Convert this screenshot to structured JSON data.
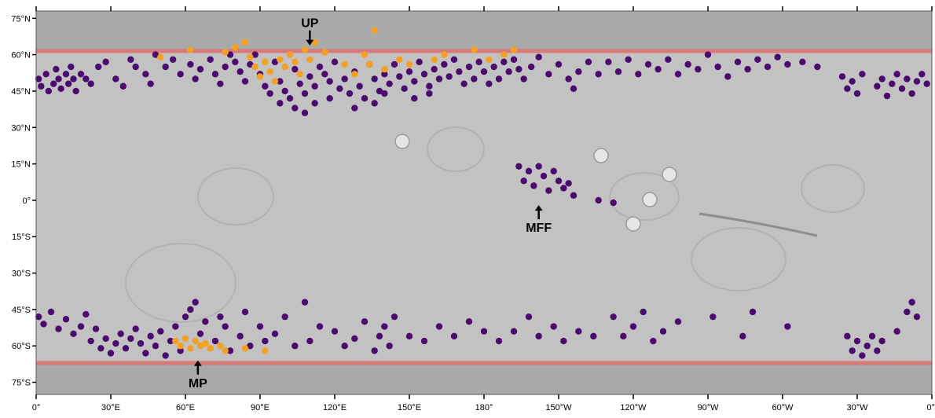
{
  "map": {
    "projection": "equirectangular",
    "lon_range_east": [
      0,
      360
    ],
    "lat_range": [
      -80,
      78
    ],
    "lat_ticks": [
      {
        "lat": 75,
        "label": "75°N"
      },
      {
        "lat": 60,
        "label": "60°N"
      },
      {
        "lat": 45,
        "label": "45°N"
      },
      {
        "lat": 30,
        "label": "30°N"
      },
      {
        "lat": 15,
        "label": "15°N"
      },
      {
        "lat": 0,
        "label": "0°"
      },
      {
        "lat": -15,
        "label": "15°S"
      },
      {
        "lat": -30,
        "label": "30°S"
      },
      {
        "lat": -45,
        "label": "45°S"
      },
      {
        "lat": -60,
        "label": "60°S"
      },
      {
        "lat": -75,
        "label": "75°S"
      }
    ],
    "lon_ticks": [
      {
        "lon": 0,
        "label": "0°"
      },
      {
        "lon": 30,
        "label": "30°E"
      },
      {
        "lon": 60,
        "label": "60°E"
      },
      {
        "lon": 90,
        "label": "90°E"
      },
      {
        "lon": 120,
        "label": "120°E"
      },
      {
        "lon": 150,
        "label": "150°E"
      },
      {
        "lon": 180,
        "label": "180°"
      },
      {
        "lon": 210,
        "label": "150°W"
      },
      {
        "lon": 240,
        "label": "120°W"
      },
      {
        "lon": 270,
        "label": "90°W"
      },
      {
        "lon": 300,
        "label": "60°W"
      },
      {
        "lon": 330,
        "label": "30°W"
      },
      {
        "lon": 360,
        "label": "0°"
      }
    ],
    "colors": {
      "background": "#c2c2c2",
      "polar_band": "#a9a9a9",
      "lat_line": "#e07070",
      "purple_points": "#4b0a6e",
      "orange_points": "#f5a020"
    },
    "lat_lines": [
      61.5,
      -67
    ],
    "annotations": [
      {
        "label": "UP",
        "lon": 110,
        "lat": 70,
        "arrow": "down"
      },
      {
        "label": "MFF",
        "lon": 202,
        "lat": -2,
        "arrow": "up"
      },
      {
        "label": "MP",
        "lon": 65,
        "lat": -66,
        "arrow": "up"
      }
    ]
  },
  "chart_data": {
    "type": "scatter",
    "x_units": "longitude (°E, 0–360)",
    "y_units": "latitude (°)",
    "series": [
      {
        "color": "#4b0a6e",
        "points": [
          [
            1,
            50
          ],
          [
            2,
            47
          ],
          [
            4,
            52
          ],
          [
            5,
            45
          ],
          [
            7,
            48
          ],
          [
            8,
            54
          ],
          [
            9,
            50
          ],
          [
            10,
            46
          ],
          [
            12,
            52
          ],
          [
            13,
            48
          ],
          [
            14,
            55
          ],
          [
            15,
            50
          ],
          [
            16,
            45
          ],
          [
            18,
            52
          ],
          [
            20,
            50
          ],
          [
            22,
            48
          ],
          [
            25,
            55
          ],
          [
            28,
            57
          ],
          [
            32,
            50
          ],
          [
            35,
            47
          ],
          [
            38,
            58
          ],
          [
            40,
            55
          ],
          [
            44,
            52
          ],
          [
            46,
            48
          ],
          [
            48,
            60
          ],
          [
            52,
            55
          ],
          [
            55,
            58
          ],
          [
            58,
            52
          ],
          [
            62,
            56
          ],
          [
            64,
            50
          ],
          [
            66,
            54
          ],
          [
            70,
            58
          ],
          [
            72,
            52
          ],
          [
            74,
            48
          ],
          [
            76,
            55
          ],
          [
            78,
            60
          ],
          [
            80,
            57
          ],
          [
            82,
            53
          ],
          [
            84,
            49
          ],
          [
            86,
            56
          ],
          [
            88,
            60
          ],
          [
            90,
            52
          ],
          [
            92,
            47
          ],
          [
            94,
            44
          ],
          [
            96,
            57
          ],
          [
            98,
            49
          ],
          [
            100,
            45
          ],
          [
            102,
            42
          ],
          [
            104,
            54
          ],
          [
            106,
            48
          ],
          [
            108,
            44
          ],
          [
            110,
            51
          ],
          [
            112,
            47
          ],
          [
            114,
            55
          ],
          [
            116,
            52
          ],
          [
            118,
            49
          ],
          [
            120,
            57
          ],
          [
            122,
            46
          ],
          [
            124,
            50
          ],
          [
            126,
            44
          ],
          [
            128,
            53
          ],
          [
            130,
            47
          ],
          [
            132,
            42
          ],
          [
            134,
            56
          ],
          [
            136,
            50
          ],
          [
            138,
            45
          ],
          [
            140,
            52
          ],
          [
            142,
            48
          ],
          [
            144,
            56
          ],
          [
            146,
            51
          ],
          [
            148,
            46
          ],
          [
            150,
            53
          ],
          [
            152,
            49
          ],
          [
            154,
            57
          ],
          [
            156,
            52
          ],
          [
            158,
            47
          ],
          [
            160,
            54
          ],
          [
            162,
            50
          ],
          [
            164,
            56
          ],
          [
            166,
            51
          ],
          [
            168,
            58
          ],
          [
            170,
            53
          ],
          [
            172,
            48
          ],
          [
            174,
            55
          ],
          [
            176,
            50
          ],
          [
            178,
            57
          ],
          [
            180,
            53
          ],
          [
            182,
            48
          ],
          [
            184,
            55
          ],
          [
            186,
            50
          ],
          [
            188,
            57
          ],
          [
            190,
            53
          ],
          [
            192,
            58
          ],
          [
            194,
            54
          ],
          [
            196,
            50
          ],
          [
            199,
            55
          ],
          [
            202,
            59
          ],
          [
            206,
            52
          ],
          [
            210,
            56
          ],
          [
            214,
            50
          ],
          [
            216,
            46
          ],
          [
            218,
            53
          ],
          [
            222,
            57
          ],
          [
            226,
            52
          ],
          [
            230,
            57
          ],
          [
            234,
            53
          ],
          [
            238,
            58
          ],
          [
            242,
            52
          ],
          [
            246,
            56
          ],
          [
            250,
            54
          ],
          [
            254,
            58
          ],
          [
            258,
            52
          ],
          [
            262,
            56
          ],
          [
            266,
            54
          ],
          [
            270,
            60
          ],
          [
            274,
            55
          ],
          [
            278,
            51
          ],
          [
            282,
            57
          ],
          [
            286,
            54
          ],
          [
            290,
            58
          ],
          [
            294,
            55
          ],
          [
            298,
            59
          ],
          [
            302,
            56
          ],
          [
            308,
            57
          ],
          [
            314,
            55
          ],
          [
            324,
            51
          ],
          [
            326,
            46
          ],
          [
            328,
            49
          ],
          [
            330,
            44
          ],
          [
            332,
            52
          ],
          [
            338,
            47
          ],
          [
            340,
            50
          ],
          [
            342,
            43
          ],
          [
            344,
            48
          ],
          [
            346,
            52
          ],
          [
            348,
            46
          ],
          [
            350,
            50
          ],
          [
            352,
            44
          ],
          [
            354,
            49
          ],
          [
            356,
            52
          ],
          [
            358,
            48
          ],
          [
            98,
            40
          ],
          [
            104,
            38
          ],
          [
            108,
            36
          ],
          [
            112,
            40
          ],
          [
            118,
            42
          ],
          [
            128,
            38
          ],
          [
            136,
            40
          ],
          [
            140,
            44
          ],
          [
            152,
            42
          ],
          [
            158,
            44
          ],
          [
            194,
            14
          ],
          [
            196,
            8
          ],
          [
            198,
            12
          ],
          [
            200,
            6
          ],
          [
            202,
            14
          ],
          [
            204,
            10
          ],
          [
            206,
            4
          ],
          [
            208,
            12
          ],
          [
            210,
            8
          ],
          [
            212,
            5
          ],
          [
            214,
            7
          ],
          [
            216,
            2
          ],
          [
            226,
            0
          ],
          [
            232,
            -1
          ],
          [
            1,
            -48
          ],
          [
            3,
            -51
          ],
          [
            6,
            -46
          ],
          [
            9,
            -53
          ],
          [
            12,
            -49
          ],
          [
            15,
            -55
          ],
          [
            18,
            -52
          ],
          [
            20,
            -47
          ],
          [
            22,
            -58
          ],
          [
            24,
            -53
          ],
          [
            26,
            -61
          ],
          [
            28,
            -57
          ],
          [
            30,
            -63
          ],
          [
            32,
            -59
          ],
          [
            34,
            -55
          ],
          [
            36,
            -61
          ],
          [
            38,
            -57
          ],
          [
            40,
            -53
          ],
          [
            42,
            -59
          ],
          [
            44,
            -63
          ],
          [
            46,
            -56
          ],
          [
            48,
            -60
          ],
          [
            50,
            -54
          ],
          [
            52,
            -64
          ],
          [
            54,
            -58
          ],
          [
            56,
            -52
          ],
          [
            58,
            -62
          ],
          [
            60,
            -48
          ],
          [
            62,
            -45
          ],
          [
            64,
            -42
          ],
          [
            66,
            -55
          ],
          [
            68,
            -50
          ],
          [
            72,
            -58
          ],
          [
            74,
            -48
          ],
          [
            76,
            -52
          ],
          [
            78,
            -62
          ],
          [
            82,
            -56
          ],
          [
            84,
            -46
          ],
          [
            86,
            -60
          ],
          [
            90,
            -52
          ],
          [
            92,
            -58
          ],
          [
            96,
            -55
          ],
          [
            100,
            -48
          ],
          [
            104,
            -60
          ],
          [
            108,
            -42
          ],
          [
            110,
            -58
          ],
          [
            114,
            -52
          ],
          [
            120,
            -54
          ],
          [
            124,
            -60
          ],
          [
            128,
            -57
          ],
          [
            132,
            -50
          ],
          [
            136,
            -62
          ],
          [
            138,
            -56
          ],
          [
            140,
            -52
          ],
          [
            142,
            -60
          ],
          [
            144,
            -48
          ],
          [
            150,
            -56
          ],
          [
            156,
            -58
          ],
          [
            162,
            -52
          ],
          [
            168,
            -56
          ],
          [
            174,
            -50
          ],
          [
            180,
            -54
          ],
          [
            186,
            -58
          ],
          [
            192,
            -54
          ],
          [
            198,
            -48
          ],
          [
            202,
            -56
          ],
          [
            208,
            -52
          ],
          [
            212,
            -58
          ],
          [
            218,
            -54
          ],
          [
            224,
            -56
          ],
          [
            232,
            -48
          ],
          [
            236,
            -56
          ],
          [
            240,
            -52
          ],
          [
            244,
            -46
          ],
          [
            248,
            -58
          ],
          [
            252,
            -54
          ],
          [
            258,
            -50
          ],
          [
            272,
            -48
          ],
          [
            284,
            -56
          ],
          [
            288,
            -46
          ],
          [
            302,
            -52
          ],
          [
            326,
            -56
          ],
          [
            328,
            -62
          ],
          [
            330,
            -58
          ],
          [
            332,
            -64
          ],
          [
            334,
            -60
          ],
          [
            336,
            -56
          ],
          [
            338,
            -62
          ],
          [
            340,
            -58
          ],
          [
            346,
            -54
          ],
          [
            350,
            -46
          ],
          [
            352,
            -42
          ],
          [
            354,
            -48
          ]
        ]
      },
      {
        "color": "#f5a020",
        "points": [
          [
            50,
            59
          ],
          [
            62,
            62
          ],
          [
            76,
            61
          ],
          [
            80,
            63
          ],
          [
            84,
            65
          ],
          [
            86,
            59
          ],
          [
            88,
            55
          ],
          [
            90,
            51
          ],
          [
            92,
            57
          ],
          [
            94,
            53
          ],
          [
            96,
            49
          ],
          [
            98,
            58
          ],
          [
            100,
            55
          ],
          [
            102,
            60
          ],
          [
            104,
            57
          ],
          [
            106,
            52
          ],
          [
            108,
            62
          ],
          [
            110,
            58
          ],
          [
            112,
            65
          ],
          [
            116,
            61
          ],
          [
            124,
            56
          ],
          [
            128,
            52
          ],
          [
            132,
            60
          ],
          [
            134,
            56
          ],
          [
            136,
            70
          ],
          [
            140,
            54
          ],
          [
            146,
            58
          ],
          [
            150,
            56
          ],
          [
            160,
            58
          ],
          [
            164,
            60
          ],
          [
            176,
            62
          ],
          [
            182,
            58
          ],
          [
            188,
            60
          ],
          [
            192,
            62
          ],
          [
            56,
            -58
          ],
          [
            58,
            -60
          ],
          [
            60,
            -57
          ],
          [
            62,
            -61
          ],
          [
            64,
            -58
          ],
          [
            66,
            -60
          ],
          [
            68,
            -59
          ],
          [
            70,
            -61
          ],
          [
            74,
            -60
          ],
          [
            76,
            -62
          ],
          [
            84,
            -61
          ],
          [
            92,
            -62
          ]
        ]
      }
    ]
  }
}
